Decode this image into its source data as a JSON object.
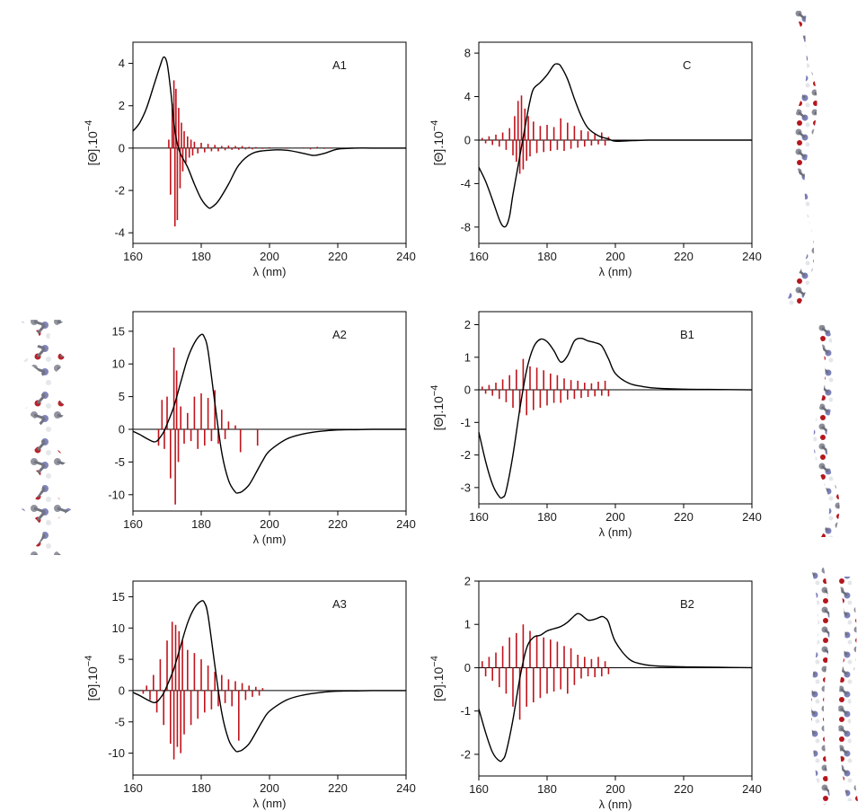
{
  "colors": {
    "stick_spectrum": "#c0141c",
    "smooth_spectrum": "#000000",
    "axis": "#000000"
  },
  "chart_data": [
    {
      "id": "A1",
      "type": "line",
      "panel_label": "A1",
      "xlabel": "λ (nm)",
      "ylabel_base": "[Θ].10",
      "ylabel_exp": "−4",
      "xlim": [
        160,
        240
      ],
      "ylim": [
        -4.5,
        5
      ],
      "xticks": [
        160,
        180,
        200,
        220,
        240
      ],
      "yticks": [
        -4,
        -2,
        0,
        2,
        4
      ],
      "ytick_labels": [
        "-4",
        "-2",
        "0",
        "2",
        "4"
      ],
      "series": [
        {
          "kind": "smooth",
          "x": [
            160,
            162,
            164,
            166,
            168,
            169,
            170,
            171,
            172,
            173,
            174,
            176,
            178,
            180,
            182,
            183,
            185,
            188,
            191,
            195,
            200,
            205,
            210,
            213,
            216,
            220,
            225,
            230,
            240
          ],
          "y": [
            0.8,
            1.2,
            1.9,
            2.9,
            3.9,
            4.3,
            4.0,
            2.8,
            1.2,
            0.2,
            -0.3,
            -0.9,
            -1.7,
            -2.4,
            -2.8,
            -2.8,
            -2.5,
            -1.7,
            -0.8,
            -0.25,
            -0.1,
            -0.1,
            -0.25,
            -0.35,
            -0.25,
            -0.05,
            0,
            0,
            0
          ]
        },
        {
          "kind": "sticks",
          "x": [
            170.5,
            171,
            171.5,
            172,
            172.3,
            172.6,
            173,
            173.4,
            173.8,
            174.2,
            174.6,
            175,
            175.5,
            176,
            176.5,
            177,
            177.5,
            178,
            179,
            180,
            181,
            182,
            183,
            184,
            185,
            186,
            187,
            188,
            189,
            190,
            191,
            192,
            193,
            194,
            195,
            196,
            198,
            200,
            205,
            210,
            212,
            214,
            216,
            218
          ],
          "y": [
            0.4,
            -2.2,
            2.1,
            3.2,
            -3.7,
            2.8,
            -3.4,
            1.9,
            -1.9,
            1.2,
            -1.1,
            0.8,
            -0.7,
            0.55,
            -0.45,
            0.4,
            -0.35,
            0.3,
            -0.25,
            0.25,
            -0.2,
            0.2,
            -0.15,
            0.15,
            -0.15,
            0.1,
            -0.1,
            0.12,
            -0.08,
            0.1,
            -0.08,
            0.1,
            -0.06,
            0.06,
            -0.06,
            0.05,
            -0.04,
            0.04,
            -0.03,
            0.03,
            -0.06,
            0.06,
            -0.04,
            0.03
          ]
        }
      ]
    },
    {
      "id": "C",
      "type": "line",
      "panel_label": "C",
      "xlabel": "λ (nm)",
      "ylabel_base": "[Θ].10",
      "ylabel_exp": "−4",
      "xlim": [
        160,
        240
      ],
      "ylim": [
        -9.5,
        9
      ],
      "xticks": [
        160,
        180,
        200,
        220,
        240
      ],
      "yticks": [
        -8,
        -4,
        0,
        4,
        8
      ],
      "ytick_labels": [
        "-8",
        "-4",
        "0",
        "4",
        "8"
      ],
      "series": [
        {
          "kind": "smooth",
          "x": [
            160,
            162,
            164,
            166,
            167,
            168,
            169,
            170,
            172,
            174,
            175,
            176,
            178,
            180,
            182,
            183,
            184,
            186,
            188,
            190,
            192,
            195,
            198,
            200,
            205,
            210,
            220,
            240
          ],
          "y": [
            -2.5,
            -3.8,
            -5.5,
            -7.3,
            -7.9,
            -7.9,
            -7.0,
            -5.0,
            -1.5,
            2.0,
            3.6,
            4.7,
            5.3,
            6.0,
            6.9,
            7.0,
            6.8,
            5.6,
            3.8,
            2.2,
            1.1,
            0.4,
            0.1,
            -0.1,
            -0.05,
            0,
            0,
            0
          ]
        },
        {
          "kind": "sticks",
          "x": [
            161,
            162,
            163,
            164,
            165,
            166,
            167,
            168,
            169,
            170,
            170.5,
            171,
            171.5,
            172,
            172.5,
            173,
            173.5,
            174,
            174.5,
            175,
            176,
            177,
            178,
            179,
            180,
            181,
            182,
            183,
            184,
            185,
            186,
            187,
            188,
            189,
            190,
            191,
            192,
            193,
            194,
            195,
            196,
            197,
            198
          ],
          "y": [
            0.2,
            -0.3,
            0.35,
            -0.45,
            0.5,
            -0.6,
            0.7,
            -0.9,
            1.1,
            -1.4,
            2.2,
            -2.0,
            3.6,
            -3.1,
            4.1,
            -2.7,
            2.9,
            -1.9,
            2.2,
            -1.5,
            1.7,
            -1.2,
            1.3,
            -1.1,
            1.4,
            -1.0,
            1.2,
            -0.9,
            2.0,
            -1.0,
            1.6,
            -0.8,
            1.3,
            -0.7,
            0.9,
            -0.6,
            0.8,
            -0.5,
            0.6,
            -0.4,
            0.7,
            -0.5,
            0.3
          ]
        }
      ]
    },
    {
      "id": "A2",
      "type": "line",
      "panel_label": "A2",
      "xlabel": "λ (nm)",
      "ylabel_base": "",
      "ylabel_exp": "",
      "xlim": [
        160,
        240
      ],
      "ylim": [
        -12.5,
        18
      ],
      "xticks": [
        160,
        180,
        200,
        220,
        240
      ],
      "yticks": [
        -10,
        -5,
        0,
        5,
        10,
        15
      ],
      "ytick_labels": [
        "-10",
        "-5",
        "0",
        "5",
        "10",
        "15"
      ],
      "series": [
        {
          "kind": "smooth",
          "x": [
            160,
            162,
            164,
            166,
            167,
            168,
            169,
            170,
            172,
            174,
            176,
            178,
            180,
            181,
            182,
            184,
            186,
            188,
            190,
            191,
            192,
            194,
            196,
            198,
            200,
            205,
            210,
            215,
            220,
            225,
            230,
            240
          ],
          "y": [
            -0.3,
            -0.8,
            -1.4,
            -1.9,
            -1.8,
            -1.2,
            -0.4,
            0.8,
            3.5,
            7.2,
            10.8,
            13.2,
            14.5,
            14.0,
            12.0,
            4.0,
            -3.5,
            -7.8,
            -9.6,
            -9.7,
            -9.5,
            -8.5,
            -6.7,
            -4.8,
            -3.3,
            -1.5,
            -0.7,
            -0.3,
            -0.1,
            -0.05,
            0,
            0
          ]
        },
        {
          "kind": "sticks",
          "x": [
            167.5,
            168.5,
            169.2,
            170,
            171,
            172,
            172.4,
            172.8,
            173.3,
            174,
            175,
            176,
            177,
            178,
            179,
            180,
            181,
            182,
            183,
            184,
            185,
            186,
            187,
            188,
            190,
            191.5,
            196.5
          ],
          "y": [
            -2.5,
            4.5,
            -3.0,
            5.0,
            -7.5,
            12.5,
            -11.5,
            9.0,
            -5.0,
            3.5,
            -2.2,
            2.5,
            -1.8,
            5.0,
            -3.0,
            5.5,
            -2.5,
            4.8,
            -1.8,
            6.0,
            -2.2,
            3.0,
            -1.5,
            1.2,
            0.6,
            -3.5,
            -2.5
          ]
        }
      ]
    },
    {
      "id": "B1",
      "type": "line",
      "panel_label": "B1",
      "xlabel": "λ (nm)",
      "ylabel_base": "[Θ].10",
      "ylabel_exp": "−4",
      "xlim": [
        160,
        240
      ],
      "ylim": [
        -3.5,
        2.4
      ],
      "xticks": [
        160,
        180,
        200,
        220,
        240
      ],
      "yticks": [
        -3,
        -2,
        -1,
        0,
        1,
        2
      ],
      "ytick_labels": [
        "-3",
        "-2",
        "-1",
        "0",
        "1",
        "2"
      ],
      "series": [
        {
          "kind": "smooth",
          "x": [
            160,
            162,
            164,
            166,
            167,
            168,
            170,
            172,
            174,
            176,
            178,
            180,
            182,
            184,
            186,
            188,
            190,
            192,
            194,
            196,
            198,
            200,
            204,
            208,
            212,
            220,
            230,
            240
          ],
          "y": [
            -1.3,
            -2.2,
            -2.9,
            -3.28,
            -3.3,
            -3.1,
            -2.0,
            -0.6,
            0.6,
            1.3,
            1.55,
            1.48,
            1.2,
            0.85,
            1.05,
            1.5,
            1.58,
            1.5,
            1.45,
            1.35,
            0.95,
            0.5,
            0.2,
            0.1,
            0.05,
            0.02,
            0.01,
            0
          ]
        },
        {
          "kind": "sticks",
          "x": [
            161,
            162,
            163,
            164,
            165,
            166,
            167,
            168,
            169,
            170,
            171,
            172,
            173,
            174,
            175,
            176,
            177,
            178,
            179,
            180,
            181,
            182,
            183,
            184,
            185,
            186,
            187,
            188,
            189,
            190,
            191,
            192,
            193,
            194,
            195,
            196,
            197,
            198
          ],
          "y": [
            0.1,
            -0.12,
            0.15,
            -0.18,
            0.22,
            -0.28,
            0.32,
            -0.38,
            0.45,
            -0.55,
            0.62,
            -0.7,
            0.95,
            -0.78,
            0.72,
            -0.62,
            0.68,
            -0.55,
            0.6,
            -0.48,
            0.5,
            -0.4,
            0.45,
            -0.4,
            0.35,
            -0.3,
            0.3,
            -0.28,
            0.28,
            -0.25,
            0.22,
            -0.22,
            0.2,
            -0.2,
            0.25,
            -0.18,
            0.28,
            -0.2
          ]
        }
      ]
    },
    {
      "id": "A3",
      "type": "line",
      "panel_label": "A3",
      "xlabel": "λ (nm)",
      "ylabel_base": "[Θ].10",
      "ylabel_exp": "−4",
      "xlim": [
        160,
        240
      ],
      "ylim": [
        -13.5,
        17.5
      ],
      "xticks": [
        160,
        180,
        200,
        220,
        240
      ],
      "yticks": [
        -10,
        -5,
        0,
        5,
        10,
        15
      ],
      "ytick_labels": [
        "-10",
        "-5",
        "0",
        "5",
        "10",
        "15"
      ],
      "series": [
        {
          "kind": "smooth",
          "x": [
            160,
            162,
            164,
            166,
            167,
            168,
            169,
            170,
            172,
            174,
            176,
            178,
            180,
            181,
            182,
            184,
            186,
            188,
            190,
            191,
            192,
            194,
            196,
            198,
            200,
            205,
            210,
            215,
            220,
            225,
            230,
            240
          ],
          "y": [
            -0.3,
            -0.8,
            -1.4,
            -1.9,
            -1.8,
            -1.2,
            -0.4,
            0.8,
            3.5,
            7.2,
            10.8,
            13.2,
            14.3,
            14.0,
            12.0,
            4.0,
            -3.5,
            -7.8,
            -9.6,
            -9.7,
            -9.5,
            -8.5,
            -6.7,
            -4.8,
            -3.3,
            -1.5,
            -0.7,
            -0.3,
            -0.1,
            -0.05,
            0,
            0
          ]
        },
        {
          "kind": "sticks",
          "x": [
            163,
            164,
            165,
            166,
            167,
            168,
            169,
            170,
            171,
            171.5,
            172,
            172.5,
            173,
            173.5,
            174,
            174.5,
            175,
            176,
            177,
            178,
            179,
            180,
            181,
            182,
            183,
            184,
            185,
            186,
            187,
            188,
            189,
            190,
            191,
            192,
            193,
            194,
            195,
            196,
            197,
            198
          ],
          "y": [
            -0.5,
            0.8,
            -1.5,
            2.5,
            -3.5,
            5.0,
            -5.5,
            8.0,
            -8.5,
            11.0,
            -11.0,
            10.5,
            -9.0,
            9.5,
            -10.0,
            8.0,
            -7.0,
            6.5,
            -5.5,
            6.0,
            -4.5,
            5.0,
            -3.5,
            4.0,
            -3.0,
            3.0,
            -2.5,
            2.5,
            -2.0,
            1.8,
            -2.5,
            1.5,
            -8.0,
            1.2,
            -1.5,
            0.8,
            -1.0,
            0.6,
            -0.8,
            0.4
          ]
        }
      ]
    },
    {
      "id": "B2",
      "type": "line",
      "panel_label": "B2",
      "xlabel": "λ (nm)",
      "ylabel_base": "[Θ].10",
      "ylabel_exp": "−4",
      "xlim": [
        160,
        240
      ],
      "ylim": [
        -2.5,
        2
      ],
      "xticks": [
        160,
        180,
        200,
        220,
        240
      ],
      "yticks": [
        -2,
        -1,
        0,
        1,
        2
      ],
      "ytick_labels": [
        "-2",
        "-1",
        "0",
        "1",
        "2"
      ],
      "series": [
        {
          "kind": "smooth",
          "x": [
            160,
            162,
            164,
            166,
            167,
            168,
            170,
            172,
            174,
            176,
            178,
            180,
            182,
            184,
            186,
            188,
            189,
            190,
            192,
            194,
            196,
            197,
            198,
            200,
            204,
            208,
            212,
            220,
            230,
            240
          ],
          "y": [
            -0.95,
            -1.5,
            -1.95,
            -2.15,
            -2.12,
            -1.95,
            -1.2,
            -0.25,
            0.45,
            0.7,
            0.75,
            0.85,
            0.9,
            0.95,
            1.05,
            1.2,
            1.25,
            1.22,
            1.1,
            1.12,
            1.18,
            1.15,
            1.05,
            0.6,
            0.2,
            0.08,
            0.04,
            0.02,
            0.01,
            0
          ]
        },
        {
          "kind": "sticks",
          "x": [
            161,
            162,
            163,
            164,
            165,
            166,
            167,
            168,
            169,
            170,
            171,
            172,
            173,
            174,
            175,
            176,
            177,
            178,
            179,
            180,
            181,
            182,
            183,
            184,
            185,
            186,
            187,
            188,
            189,
            190,
            191,
            192,
            193,
            194,
            195,
            196,
            197,
            198
          ],
          "y": [
            0.15,
            -0.2,
            0.25,
            -0.3,
            0.35,
            -0.45,
            0.5,
            -0.6,
            0.7,
            -0.9,
            0.8,
            -1.2,
            1.0,
            -0.9,
            0.85,
            -0.8,
            0.75,
            -0.7,
            0.7,
            -0.6,
            0.65,
            -0.55,
            0.6,
            -0.5,
            0.5,
            -0.6,
            0.45,
            -0.4,
            0.3,
            -0.25,
            0.25,
            -0.2,
            0.2,
            -0.22,
            0.25,
            -0.2,
            0.15,
            -0.15
          ]
        }
      ]
    }
  ]
}
